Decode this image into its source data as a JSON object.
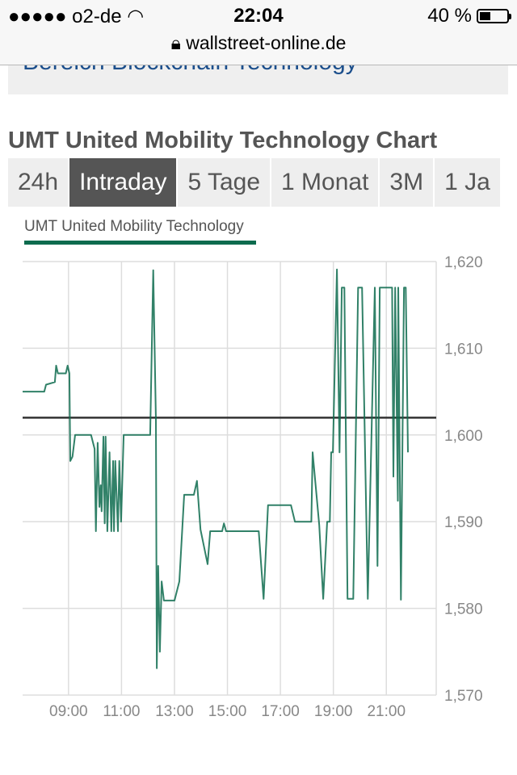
{
  "status_bar": {
    "signal": "●●●●●",
    "carrier": "o2-de",
    "time": "22:04",
    "battery": "40 %",
    "battery_level": 0.4
  },
  "browser": {
    "url": "wallstreet-online.de"
  },
  "banner": {
    "text": "Bereich Blockchain Technology"
  },
  "chart_title": "UMT United Mobility Technology Chart",
  "tabs": [
    {
      "label": "24h"
    },
    {
      "label": "Intraday",
      "active": true
    },
    {
      "label": "5 Tage"
    },
    {
      "label": "1 Monat"
    },
    {
      "label": "3M"
    },
    {
      "label": "1 Ja"
    }
  ],
  "colors": {
    "series": "#0d6b4e",
    "reference": "#333333",
    "active_tab": "#555555"
  },
  "chart_data": {
    "type": "line",
    "legend": [
      "UMT United Mobility Technology"
    ],
    "legend_placement": "top-left",
    "grid": true,
    "xlim": [
      "07:16",
      "22:53"
    ],
    "ylim": [
      1.57,
      1.62
    ],
    "x_ticks": [
      "09:00",
      "11:00",
      "13:00",
      "15:00",
      "17:00",
      "19:00",
      "21:00"
    ],
    "y_ticks": [
      "1,570",
      "1,580",
      "1,590",
      "1,600",
      "1,610",
      "1,620"
    ],
    "y_tick_values": [
      1.57,
      1.58,
      1.59,
      1.6,
      1.61,
      1.62
    ],
    "reference_line": 1.602,
    "series": [
      {
        "x": [
          "07:16",
          "08:05",
          "08:09",
          "08:29",
          "08:32",
          "08:36",
          "08:54",
          "08:58",
          "09:02",
          "09:04",
          "09:09",
          "09:15",
          "09:51",
          "09:59",
          "10:02",
          "10:06",
          "10:10",
          "10:13",
          "10:15",
          "10:19",
          "10:22",
          "10:24",
          "10:28",
          "10:33",
          "10:37",
          "10:41",
          "10:43",
          "10:46",
          "10:52",
          "10:55",
          "10:59",
          "11:05",
          "12:05",
          "12:12",
          "12:18",
          "12:20",
          "12:23",
          "12:27",
          "12:31",
          "12:36",
          "13:00",
          "13:11",
          "13:22",
          "13:44",
          "13:51",
          "13:59",
          "14:15",
          "14:21",
          "14:48",
          "14:52",
          "14:57",
          "16:11",
          "16:22",
          "16:32",
          "17:24",
          "17:33",
          "18:10",
          "18:13",
          "18:28",
          "18:37",
          "18:46",
          "18:52",
          "18:55",
          "18:59",
          "19:08",
          "19:14",
          "19:19",
          "19:25",
          "19:32",
          "19:45",
          "19:56",
          "20:05",
          "20:18",
          "20:34",
          "20:40",
          "20:45",
          "20:51",
          "21:13",
          "21:16",
          "21:20",
          "21:26",
          "21:27",
          "21:33",
          "21:40",
          "21:44",
          "21:49"
        ],
        "y": [
          1.605,
          1.605,
          1.6058,
          1.6061,
          1.608,
          1.6071,
          1.6071,
          1.608,
          1.6071,
          1.597,
          1.5975,
          1.6,
          1.6,
          1.5984,
          1.5889,
          1.5991,
          1.5917,
          1.5942,
          1.5912,
          1.5998,
          1.5898,
          1.5998,
          1.5889,
          1.598,
          1.5889,
          1.597,
          1.5889,
          1.597,
          1.5889,
          1.597,
          1.59,
          1.6,
          1.6,
          1.619,
          1.6017,
          1.5731,
          1.5849,
          1.575,
          1.5831,
          1.5809,
          1.5809,
          1.5831,
          1.5931,
          1.5931,
          1.5947,
          1.5891,
          1.5851,
          1.5889,
          1.5889,
          1.5898,
          1.5889,
          1.5889,
          1.5811,
          1.5919,
          1.5919,
          1.59,
          1.59,
          1.598,
          1.5896,
          1.5811,
          1.59,
          1.59,
          1.598,
          1.598,
          1.6191,
          1.598,
          1.617,
          1.617,
          1.5811,
          1.5811,
          1.617,
          1.617,
          1.5811,
          1.617,
          1.5849,
          1.617,
          1.617,
          1.617,
          1.5952,
          1.617,
          1.5924,
          1.617,
          1.581,
          1.617,
          1.617,
          1.598
        ]
      }
    ]
  }
}
